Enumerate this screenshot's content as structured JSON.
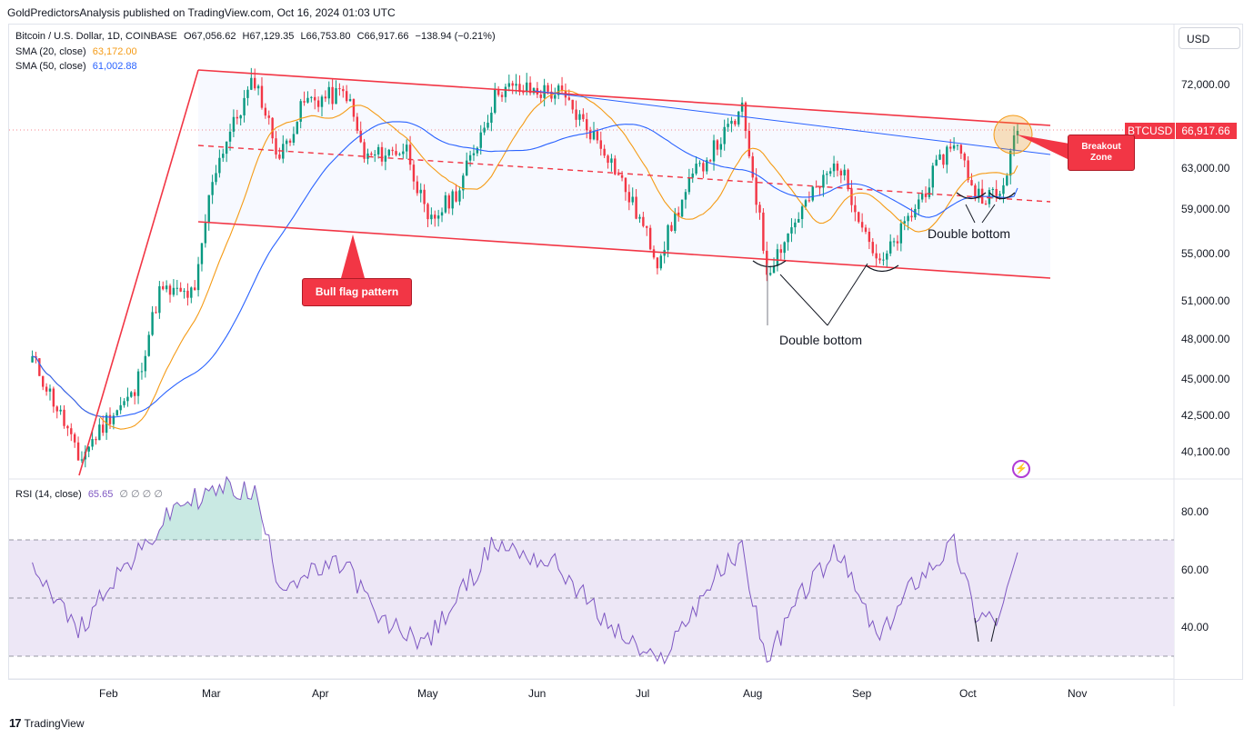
{
  "header": {
    "publisher": "GoldPredictorsAnalysis published on TradingView.com, Oct 16, 2024 01:03 UTC"
  },
  "legend": {
    "symbol": "Bitcoin / U.S. Dollar, 1D, COINBASE",
    "open": "O67,056.62",
    "high": "H67,129.35",
    "low": "L66,753.80",
    "close": "C66,917.66",
    "change": "−138.94 (−0.21%)",
    "sma20_label": "SMA (20, close)",
    "sma20_value": "63,172.00",
    "sma50_label": "SMA (50, close)",
    "sma50_value": "61,002.88",
    "rsi_label": "RSI (14, close)",
    "rsi_value": "65.65",
    "rsi_extra": "∅ ∅ ∅ ∅"
  },
  "currency_button": "USD",
  "last_price": {
    "symbol": "BTCUSD",
    "value": "66,917.66"
  },
  "annotations": {
    "bull_flag": "Bull flag pattern",
    "breakout_line1": "Breakout",
    "breakout_line2": "Zone",
    "double_bottom_1": "Double bottom",
    "double_bottom_2": "Double bottom"
  },
  "footer": {
    "brand": "TradingView"
  },
  "colors": {
    "up": "#089981",
    "down": "#f23645",
    "sma20": "#f59b16",
    "sma50": "#2962ff",
    "rsi": "#7e57c2",
    "rsi_band": "#ede7f6",
    "channel": "#f23645"
  },
  "chart_data": [
    {
      "type": "candlestick",
      "title": "Bitcoin / U.S. Dollar, 1D, COINBASE",
      "x_ticks": [
        "Feb",
        "Mar",
        "Apr",
        "May",
        "Jun",
        "Jul",
        "Aug",
        "Sep",
        "Oct",
        "Nov"
      ],
      "y_ticks": [
        "72,000.00",
        "63,000.00",
        "59,000.00",
        "55,000.00",
        "51,000.00",
        "48,000.00",
        "45,000.00",
        "42,500.00",
        "40,100.00"
      ],
      "price_path_approx": [
        [
          "Jan 10",
          46500
        ],
        [
          "Jan 20",
          41500
        ],
        [
          "Jan 23",
          39500
        ],
        [
          "Feb 1",
          42500
        ],
        [
          "Feb 8",
          44000
        ],
        [
          "Feb 15",
          51800
        ],
        [
          "Feb 25",
          51500
        ],
        [
          "Mar 1",
          62000
        ],
        [
          "Mar 5",
          66000
        ],
        [
          "Mar 13",
          72500
        ],
        [
          "Mar 20",
          64000
        ],
        [
          "Mar 27",
          70000
        ],
        [
          "Apr 8",
          71000
        ],
        [
          "Apr 13",
          64000
        ],
        [
          "Apr 25",
          65000
        ],
        [
          "May 1",
          57500
        ],
        [
          "May 10",
          61000
        ],
        [
          "May 21",
          71500
        ],
        [
          "Jun 7",
          71000
        ],
        [
          "Jun 20",
          65000
        ],
        [
          "Jul 5",
          54500
        ],
        [
          "Jul 15",
          62000
        ],
        [
          "Jul 29",
          69000
        ],
        [
          "Aug 5",
          53500
        ],
        [
          "Aug 15",
          59000
        ],
        [
          "Aug 25",
          63500
        ],
        [
          "Sep 6",
          53800
        ],
        [
          "Sep 15",
          58500
        ],
        [
          "Sep 27",
          66000
        ],
        [
          "Oct 3",
          60500
        ],
        [
          "Oct 10",
          60200
        ],
        [
          "Oct 15",
          66917.66
        ]
      ],
      "sma20_last": 63172.0,
      "sma50_last": 61002.88,
      "last_close": 66917.66
    },
    {
      "type": "line",
      "title": "RSI (14, close)",
      "y_ticks": [
        "80.00",
        "60.00",
        "40.00"
      ],
      "levels": [
        70,
        50,
        30
      ],
      "rsi_path_approx": [
        [
          "Jan 10",
          63
        ],
        [
          "Jan 23",
          38
        ],
        [
          "Feb 1",
          56
        ],
        [
          "Feb 10",
          66
        ],
        [
          "Feb 20",
          82
        ],
        [
          "Mar 5",
          88
        ],
        [
          "Mar 13",
          86
        ],
        [
          "Mar 20",
          55
        ],
        [
          "Apr 8",
          62
        ],
        [
          "Apr 17",
          42
        ],
        [
          "May 1",
          35
        ],
        [
          "May 20",
          69
        ],
        [
          "Jun 7",
          61
        ],
        [
          "Jun 20",
          42
        ],
        [
          "Jul 5",
          27
        ],
        [
          "Jul 20",
          55
        ],
        [
          "Jul 29",
          67
        ],
        [
          "Aug 5",
          28
        ],
        [
          "Aug 15",
          52
        ],
        [
          "Aug 25",
          66
        ],
        [
          "Sep 6",
          35
        ],
        [
          "Sep 15",
          55
        ],
        [
          "Sep 27",
          69
        ],
        [
          "Oct 3",
          45
        ],
        [
          "Oct 10",
          43
        ],
        [
          "Oct 15",
          65.65
        ]
      ],
      "last_value": 65.65
    }
  ]
}
